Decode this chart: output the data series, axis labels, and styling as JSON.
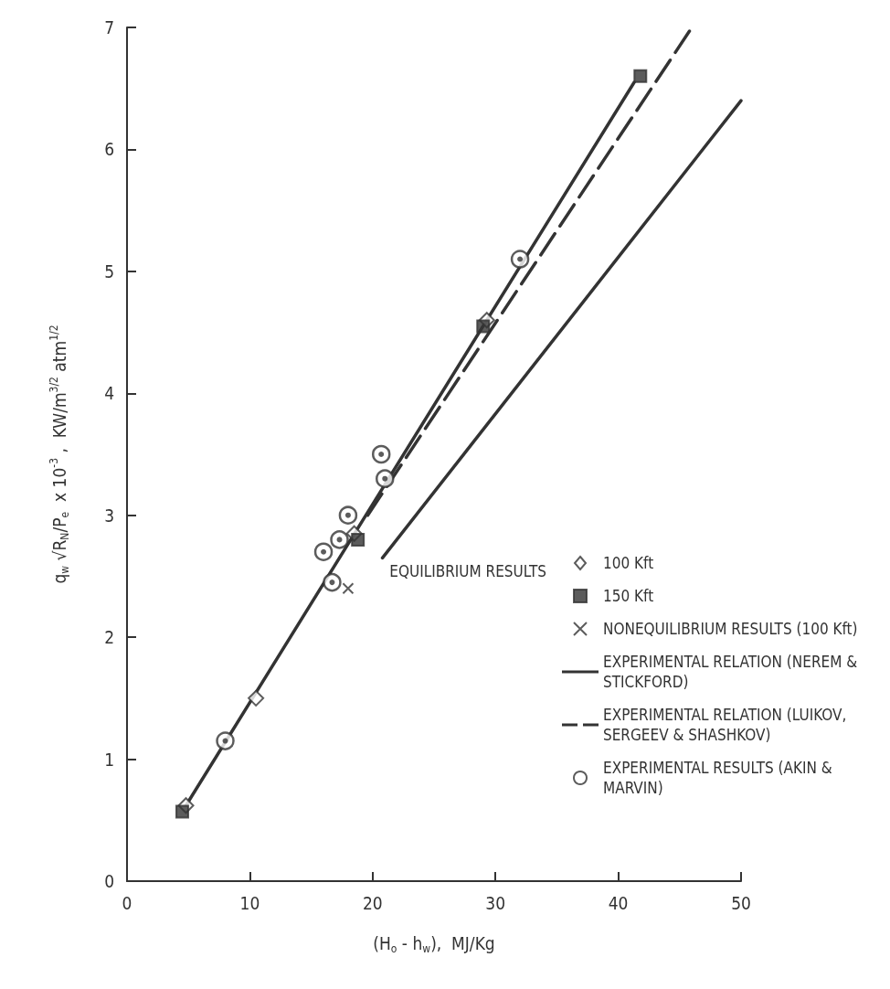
{
  "chart_data": {
    "type": "scatter",
    "xlabel": "(H$_{o}$ - h$_{w}$),  MJ/Kg",
    "ylabel": "q$_{w}$ √R$_{N}$/P$_{e}$  x 10$^{-3}$ ,  KW/m$^{3/2}$ atm$^{1/2}$",
    "legend_title": "EQUILIBRIUM RESULTS",
    "xlim": [
      0,
      50
    ],
    "xticks": [
      0,
      10,
      20,
      30,
      40,
      50
    ],
    "ylim": [
      0,
      7
    ],
    "yticks": [
      0,
      1,
      2,
      3,
      4,
      5,
      6,
      7
    ],
    "grid": false,
    "legend": "bottom right",
    "series": [
      {
        "name": "100 Kft",
        "marker": "diamond",
        "color": "#333333",
        "x": [
          4.8,
          10.5,
          18.5,
          29.3
        ],
        "values": [
          0.62,
          1.5,
          2.85,
          4.6
        ]
      },
      {
        "name": "150 Kft",
        "marker": "square",
        "color": "#333333",
        "x": [
          4.5,
          18.8,
          29,
          41.8
        ],
        "values": [
          0.57,
          2.8,
          4.55,
          6.6
        ]
      },
      {
        "name": "NONEQUILIBRIUM RESULTS (100 Kft)",
        "marker": "cross",
        "color": "#333333",
        "x": [
          18
        ],
        "values": [
          2.4
        ]
      },
      {
        "name": "EXPERIMENTAL RELATION (NEREM & STICKFORD)",
        "type": "line",
        "marker": "none",
        "line_style": "solid",
        "color": "#333333",
        "x": [
          20.8,
          50
        ],
        "values": [
          2.65,
          6.4
        ]
      },
      {
        "name": "EXPERIMENTAL RELATION (LUIKOV, SERGEEV & SHASHKOV)",
        "type": "line",
        "marker": "none",
        "line_style": "dashed",
        "color": "#333333",
        "x": [
          19.6,
          46
        ],
        "values": [
          3.0,
          7.0
        ]
      },
      {
        "name": "EXPERIMENTAL RESULTS (AKIN & MARVIN)",
        "marker": "circle",
        "color": "#333333",
        "x": [
          8,
          16,
          16.7,
          17.3,
          18,
          20.7,
          21,
          32
        ],
        "values": [
          1.15,
          2.7,
          2.45,
          2.8,
          3.0,
          3.5,
          3.3,
          5.1
        ]
      },
      {
        "type": "line",
        "marker": "none",
        "line_style": "solid",
        "color": "#333333",
        "x": [
          4.8,
          41.3
        ],
        "values": [
          0.62,
          6.55
        ]
      }
    ]
  }
}
